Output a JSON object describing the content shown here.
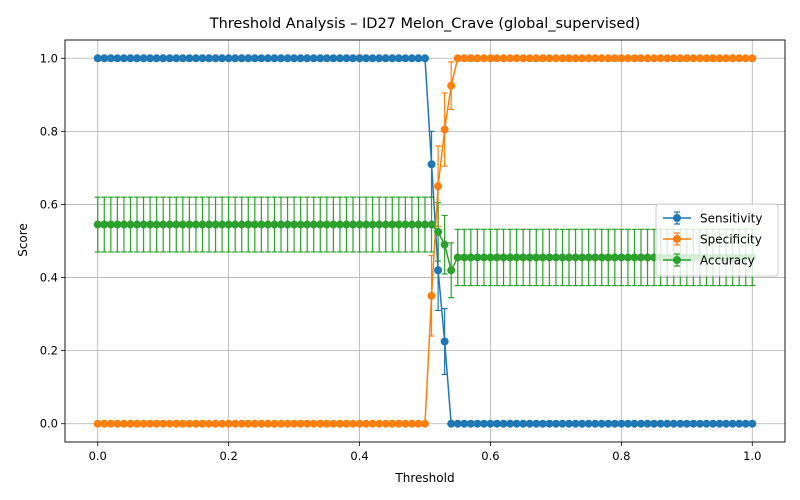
{
  "chart_data": {
    "type": "line",
    "title": "Threshold Analysis – ID27 Melon_Crave (global_supervised)",
    "xlabel": "Threshold",
    "ylabel": "Score",
    "xlim": [
      -0.05,
      1.05
    ],
    "ylim": [
      -0.05,
      1.05
    ],
    "xticks": [
      0.0,
      0.2,
      0.4,
      0.6,
      0.8,
      1.0
    ],
    "xtick_labels": [
      "0.0",
      "0.2",
      "0.4",
      "0.6",
      "0.8",
      "1.0"
    ],
    "yticks": [
      0.0,
      0.2,
      0.4,
      0.6,
      0.8,
      1.0
    ],
    "ytick_labels": [
      "0.0",
      "0.2",
      "0.4",
      "0.6",
      "0.8",
      "1.0"
    ],
    "grid": true,
    "legend_position": "center-right",
    "x": {
      "start": 0.0,
      "end": 1.0,
      "step": 0.01
    },
    "series": [
      {
        "name": "Sensitivity",
        "color": "#1f77b4",
        "default": {
          "value": 1.0,
          "error": 0.0
        },
        "segments": [
          {
            "from": 0.51,
            "to": 0.51,
            "value": 0.71,
            "error": 0.09
          },
          {
            "from": 0.52,
            "to": 0.52,
            "value": 0.42,
            "error": 0.11
          },
          {
            "from": 0.53,
            "to": 0.53,
            "value": 0.225,
            "error": 0.09
          },
          {
            "from": 0.54,
            "to": 1.0,
            "value": 0.0,
            "error": 0.0
          }
        ]
      },
      {
        "name": "Specificity",
        "color": "#ff7f0e",
        "default": {
          "value": 0.0,
          "error": 0.0
        },
        "segments": [
          {
            "from": 0.51,
            "to": 0.51,
            "value": 0.35,
            "error": 0.11
          },
          {
            "from": 0.52,
            "to": 0.52,
            "value": 0.65,
            "error": 0.11
          },
          {
            "from": 0.53,
            "to": 0.53,
            "value": 0.805,
            "error": 0.1
          },
          {
            "from": 0.54,
            "to": 0.54,
            "value": 0.925,
            "error": 0.065
          },
          {
            "from": 0.55,
            "to": 1.0,
            "value": 1.0,
            "error": 0.0
          }
        ]
      },
      {
        "name": "Accuracy",
        "color": "#2ca02c",
        "default": {
          "value": 0.545,
          "error": 0.075
        },
        "segments": [
          {
            "from": 0.52,
            "to": 0.52,
            "value": 0.525,
            "error": 0.08
          },
          {
            "from": 0.53,
            "to": 0.53,
            "value": 0.49,
            "error": 0.08
          },
          {
            "from": 0.54,
            "to": 0.54,
            "value": 0.42,
            "error": 0.075
          },
          {
            "from": 0.55,
            "to": 1.0,
            "value": 0.455,
            "error": 0.077
          }
        ]
      }
    ]
  }
}
